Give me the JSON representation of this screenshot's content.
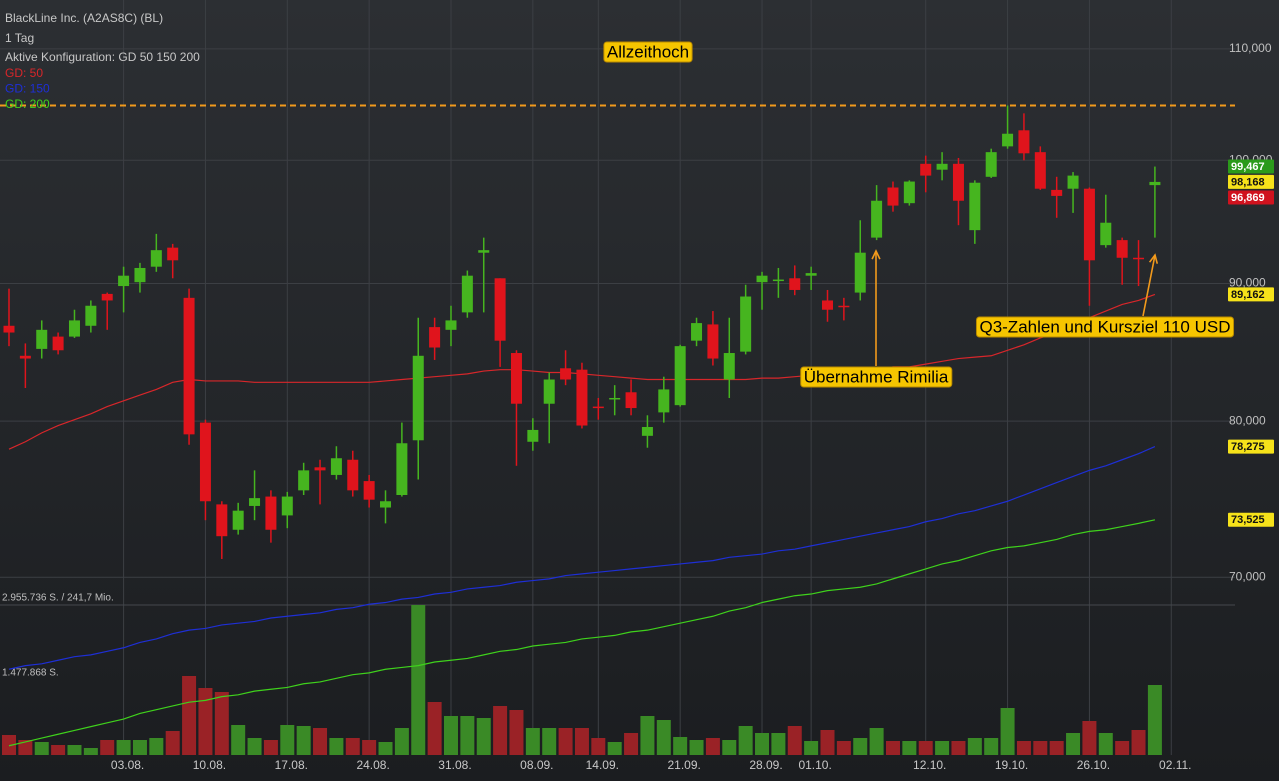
{
  "chart_data": {
    "type": "candlestick",
    "title": "BlackLine Inc. (A2AS8C) (BL)",
    "subtitle": "1 Tag",
    "configuration": "Aktive Konfiguration: GD 50 150 200",
    "log_scale": true,
    "grid": true,
    "up_color": "#46b51f",
    "down_color": "#e0141c",
    "ylim": [
      58.8,
      114.7
    ],
    "yticks": [
      {
        "value": 70,
        "label": "70,000"
      },
      {
        "value": 80,
        "label": "80,000"
      },
      {
        "value": 90,
        "label": "90,000"
      },
      {
        "value": 100,
        "label": "100,000"
      },
      {
        "value": 110,
        "label": "110,000"
      }
    ],
    "categories": [
      null,
      null,
      null,
      null,
      null,
      null,
      null,
      "03.08.",
      null,
      null,
      null,
      null,
      "10.08.",
      null,
      null,
      null,
      null,
      "17.08.",
      null,
      null,
      null,
      null,
      "24.08.",
      null,
      null,
      null,
      null,
      "31.08.",
      null,
      null,
      null,
      null,
      "08.09.",
      null,
      null,
      null,
      "14.09.",
      null,
      null,
      null,
      null,
      "21.09.",
      null,
      null,
      null,
      null,
      "28.09.",
      null,
      null,
      "01.10.",
      null,
      null,
      null,
      null,
      null,
      null,
      "12.10.",
      null,
      null,
      null,
      null,
      "19.10.",
      null,
      null,
      null,
      null,
      "26.10.",
      null,
      null,
      null,
      null,
      "02.11."
    ],
    "open": [
      86.8,
      84.6,
      85.1,
      86.0,
      86.0,
      86.8,
      89.2,
      89.8,
      90.1,
      91.3,
      92.8,
      88.9,
      79.9,
      74.5,
      72.9,
      74.4,
      75.0,
      73.8,
      75.4,
      76.9,
      76.4,
      77.4,
      76.0,
      74.3,
      75.1,
      78.7,
      86.7,
      86.5,
      87.8,
      92.4,
      90.4,
      84.8,
      78.6,
      81.2,
      83.7,
      83.6,
      81.0,
      81.5,
      82.0,
      79.0,
      80.6,
      81.1,
      85.7,
      86.9,
      82.9,
      84.9,
      90.1,
      90.2,
      90.4,
      90.6,
      88.7,
      88.3,
      89.3,
      93.6,
      97.7,
      96.4,
      99.7,
      99.2,
      99.7,
      94.2,
      98.6,
      101.2,
      102.6,
      100.7,
      97.5,
      97.6,
      97.6,
      93.0,
      93.4,
      92.0,
      97.9,
      null
    ],
    "high": [
      89.6,
      85.5,
      87.2,
      86.3,
      88.0,
      88.7,
      89.3,
      91.3,
      91.6,
      93.9,
      93.1,
      89.6,
      80.1,
      74.7,
      74.6,
      76.7,
      75.4,
      75.3,
      77.2,
      77.4,
      78.3,
      78.0,
      76.4,
      75.4,
      79.9,
      87.4,
      87.4,
      88.3,
      91.0,
      93.6,
      90.4,
      85.0,
      80.2,
      83.4,
      85.0,
      84.1,
      81.6,
      82.5,
      82.9,
      80.4,
      83.1,
      85.4,
      87.4,
      87.9,
      87.4,
      89.9,
      90.9,
      91.2,
      91.4,
      91.3,
      89.5,
      88.9,
      95.0,
      97.9,
      98.2,
      98.3,
      100.4,
      100.7,
      100.2,
      98.3,
      101.0,
      104.8,
      104.1,
      101.2,
      98.6,
      99.0,
      97.7,
      97.1,
      93.6,
      93.4,
      99.467,
      null
    ],
    "low": [
      85.3,
      82.3,
      84.4,
      84.7,
      85.9,
      86.3,
      86.5,
      87.8,
      89.3,
      90.9,
      90.4,
      78.4,
      73.5,
      71.1,
      72.6,
      73.5,
      72.1,
      73.0,
      75.1,
      74.5,
      76.1,
      75.0,
      74.3,
      73.3,
      75.0,
      76.1,
      84.3,
      85.3,
      87.4,
      87.8,
      83.8,
      77.0,
      78.0,
      78.5,
      82.5,
      79.5,
      80.1,
      80.4,
      80.4,
      78.2,
      79.9,
      81.0,
      85.3,
      83.9,
      81.6,
      84.7,
      88.0,
      88.9,
      89.1,
      89.5,
      87.1,
      87.2,
      88.7,
      93.4,
      95.7,
      96.2,
      97.3,
      98.3,
      94.6,
      93.1,
      98.5,
      101.0,
      100.0,
      97.5,
      95.2,
      95.6,
      88.3,
      92.8,
      89.9,
      89.8,
      93.6,
      null
    ],
    "close": [
      86.3,
      84.4,
      86.5,
      85.0,
      87.2,
      88.3,
      88.7,
      90.6,
      91.2,
      92.6,
      91.8,
      79.1,
      74.7,
      72.5,
      74.1,
      74.9,
      72.9,
      75.0,
      76.7,
      76.7,
      77.5,
      75.4,
      74.8,
      74.7,
      78.5,
      84.6,
      85.2,
      87.2,
      90.6,
      92.6,
      85.7,
      81.2,
      79.4,
      82.9,
      82.9,
      79.7,
      80.9,
      81.6,
      80.9,
      79.6,
      82.2,
      85.3,
      87.0,
      84.4,
      84.8,
      89.0,
      90.6,
      90.3,
      89.5,
      90.8,
      88.0,
      88.2,
      92.4,
      96.6,
      96.2,
      98.2,
      98.7,
      99.7,
      96.6,
      98.1,
      100.7,
      102.3,
      100.6,
      97.6,
      97.0,
      98.7,
      91.8,
      94.8,
      92.0,
      91.9,
      98.168,
      null
    ],
    "series": [
      {
        "name": "GD: 50",
        "color": "#d8262a",
        "values": [
          78.1,
          78.6,
          79.2,
          79.7,
          80.1,
          80.5,
          81.0,
          81.4,
          81.8,
          82.2,
          82.7,
          82.9,
          82.8,
          82.8,
          82.8,
          82.7,
          82.7,
          82.7,
          82.7,
          82.7,
          82.7,
          82.7,
          82.7,
          82.8,
          82.9,
          83.0,
          83.1,
          83.2,
          83.3,
          83.5,
          83.6,
          83.6,
          83.5,
          83.4,
          83.4,
          83.3,
          83.2,
          83.1,
          83.0,
          82.9,
          82.9,
          82.9,
          82.9,
          82.9,
          82.9,
          82.9,
          83.0,
          83.0,
          83.1,
          83.2,
          83.3,
          83.4,
          83.6,
          83.6,
          83.8,
          83.8,
          84.0,
          84.2,
          84.4,
          84.5,
          84.6,
          85.0,
          85.4,
          85.9,
          86.3,
          86.8,
          87.4,
          87.9,
          88.4,
          88.7,
          89.162,
          null
        ]
      },
      {
        "name": "GD: 150",
        "color": "#1e2fd6",
        "values": [
          64.7,
          64.9,
          65.0,
          65.2,
          65.4,
          65.5,
          65.7,
          65.9,
          66.2,
          66.4,
          66.7,
          66.9,
          67.0,
          67.2,
          67.3,
          67.4,
          67.6,
          67.7,
          67.8,
          67.9,
          68.1,
          68.2,
          68.4,
          68.5,
          68.7,
          68.8,
          69.0,
          69.1,
          69.3,
          69.4,
          69.5,
          69.7,
          69.8,
          69.9,
          70.1,
          70.2,
          70.3,
          70.4,
          70.5,
          70.6,
          70.7,
          70.8,
          70.9,
          71.0,
          71.2,
          71.3,
          71.4,
          71.6,
          71.7,
          71.9,
          72.1,
          72.3,
          72.5,
          72.7,
          72.9,
          73.1,
          73.4,
          73.6,
          73.9,
          74.1,
          74.4,
          74.7,
          75.1,
          75.5,
          75.9,
          76.3,
          76.7,
          77.0,
          77.4,
          77.8,
          78.275,
          null
        ]
      },
      {
        "name": "GD: 200",
        "color": "#3fd21c",
        "values": [
          60.6,
          60.8,
          61.0,
          61.2,
          61.4,
          61.6,
          61.8,
          62.0,
          62.3,
          62.5,
          62.7,
          62.9,
          63.0,
          63.2,
          63.3,
          63.5,
          63.6,
          63.7,
          63.9,
          64.0,
          64.2,
          64.4,
          64.5,
          64.7,
          64.8,
          64.9,
          65.1,
          65.2,
          65.3,
          65.5,
          65.7,
          65.8,
          66.0,
          66.1,
          66.2,
          66.4,
          66.5,
          66.6,
          66.8,
          66.9,
          67.1,
          67.3,
          67.5,
          67.7,
          68.0,
          68.2,
          68.5,
          68.7,
          68.9,
          69.0,
          69.2,
          69.3,
          69.4,
          69.6,
          69.9,
          70.2,
          70.5,
          70.8,
          71.0,
          71.3,
          71.6,
          71.8,
          71.9,
          72.1,
          72.3,
          72.6,
          72.8,
          72.9,
          73.1,
          73.3,
          73.525,
          null
        ]
      }
    ],
    "volume": {
      "up_color": "#3a8a26",
      "down_color": "#9a2226",
      "ylim": [
        0,
        2955736
      ],
      "yticks": [
        {
          "value": 1477868,
          "label": "1.477.868 S."
        },
        {
          "value": 2955736,
          "label": "2.955.736 S. / 241,7 Mio."
        }
      ],
      "values": [
        394100,
        295600,
        256200,
        197100,
        197100,
        137900,
        295600,
        295600,
        295600,
        335000,
        472900,
        1556700,
        1320200,
        1241400,
        591200,
        335000,
        295600,
        591200,
        571400,
        532000,
        335000,
        335000,
        295600,
        256200,
        532000,
        2955736,
        1044400,
        768500,
        768500,
        729100,
        965500,
        886700,
        532000,
        532000,
        532000,
        532000,
        335000,
        256200,
        433500,
        768500,
        689700,
        354700,
        295600,
        335000,
        295600,
        571400,
        433500,
        433500,
        571400,
        275900,
        492600,
        275900,
        335000,
        532000,
        275900,
        275900,
        275900,
        275900,
        275900,
        335000,
        335000,
        926100,
        275900,
        275900,
        275900,
        433500,
        670000,
        433500,
        275900,
        492600,
        1379400,
        null
      ]
    },
    "reference_lines": [
      {
        "value": 104.8,
        "color": "#f29a1c"
      }
    ],
    "price_labels": [
      {
        "value": 99.467,
        "label": "99,467",
        "color": "#2b9a1b"
      },
      {
        "value": 98.168,
        "label": "98,168",
        "color": "#f6e21a"
      },
      {
        "value": 96.869,
        "label": "96,869",
        "color": "#d0121e"
      },
      {
        "value": 89.162,
        "label": "89,162",
        "color": "#f6e21a"
      },
      {
        "value": 78.275,
        "label": "78,275",
        "color": "#f6e21a"
      },
      {
        "value": 73.525,
        "label": "73,525",
        "color": "#f6e21a"
      }
    ],
    "annotations": [
      {
        "text": "Allzeithoch"
      },
      {
        "text": "Übernahme Rimilia"
      },
      {
        "text": "Q3-Zahlen und Kursziel 110 USD"
      }
    ]
  }
}
